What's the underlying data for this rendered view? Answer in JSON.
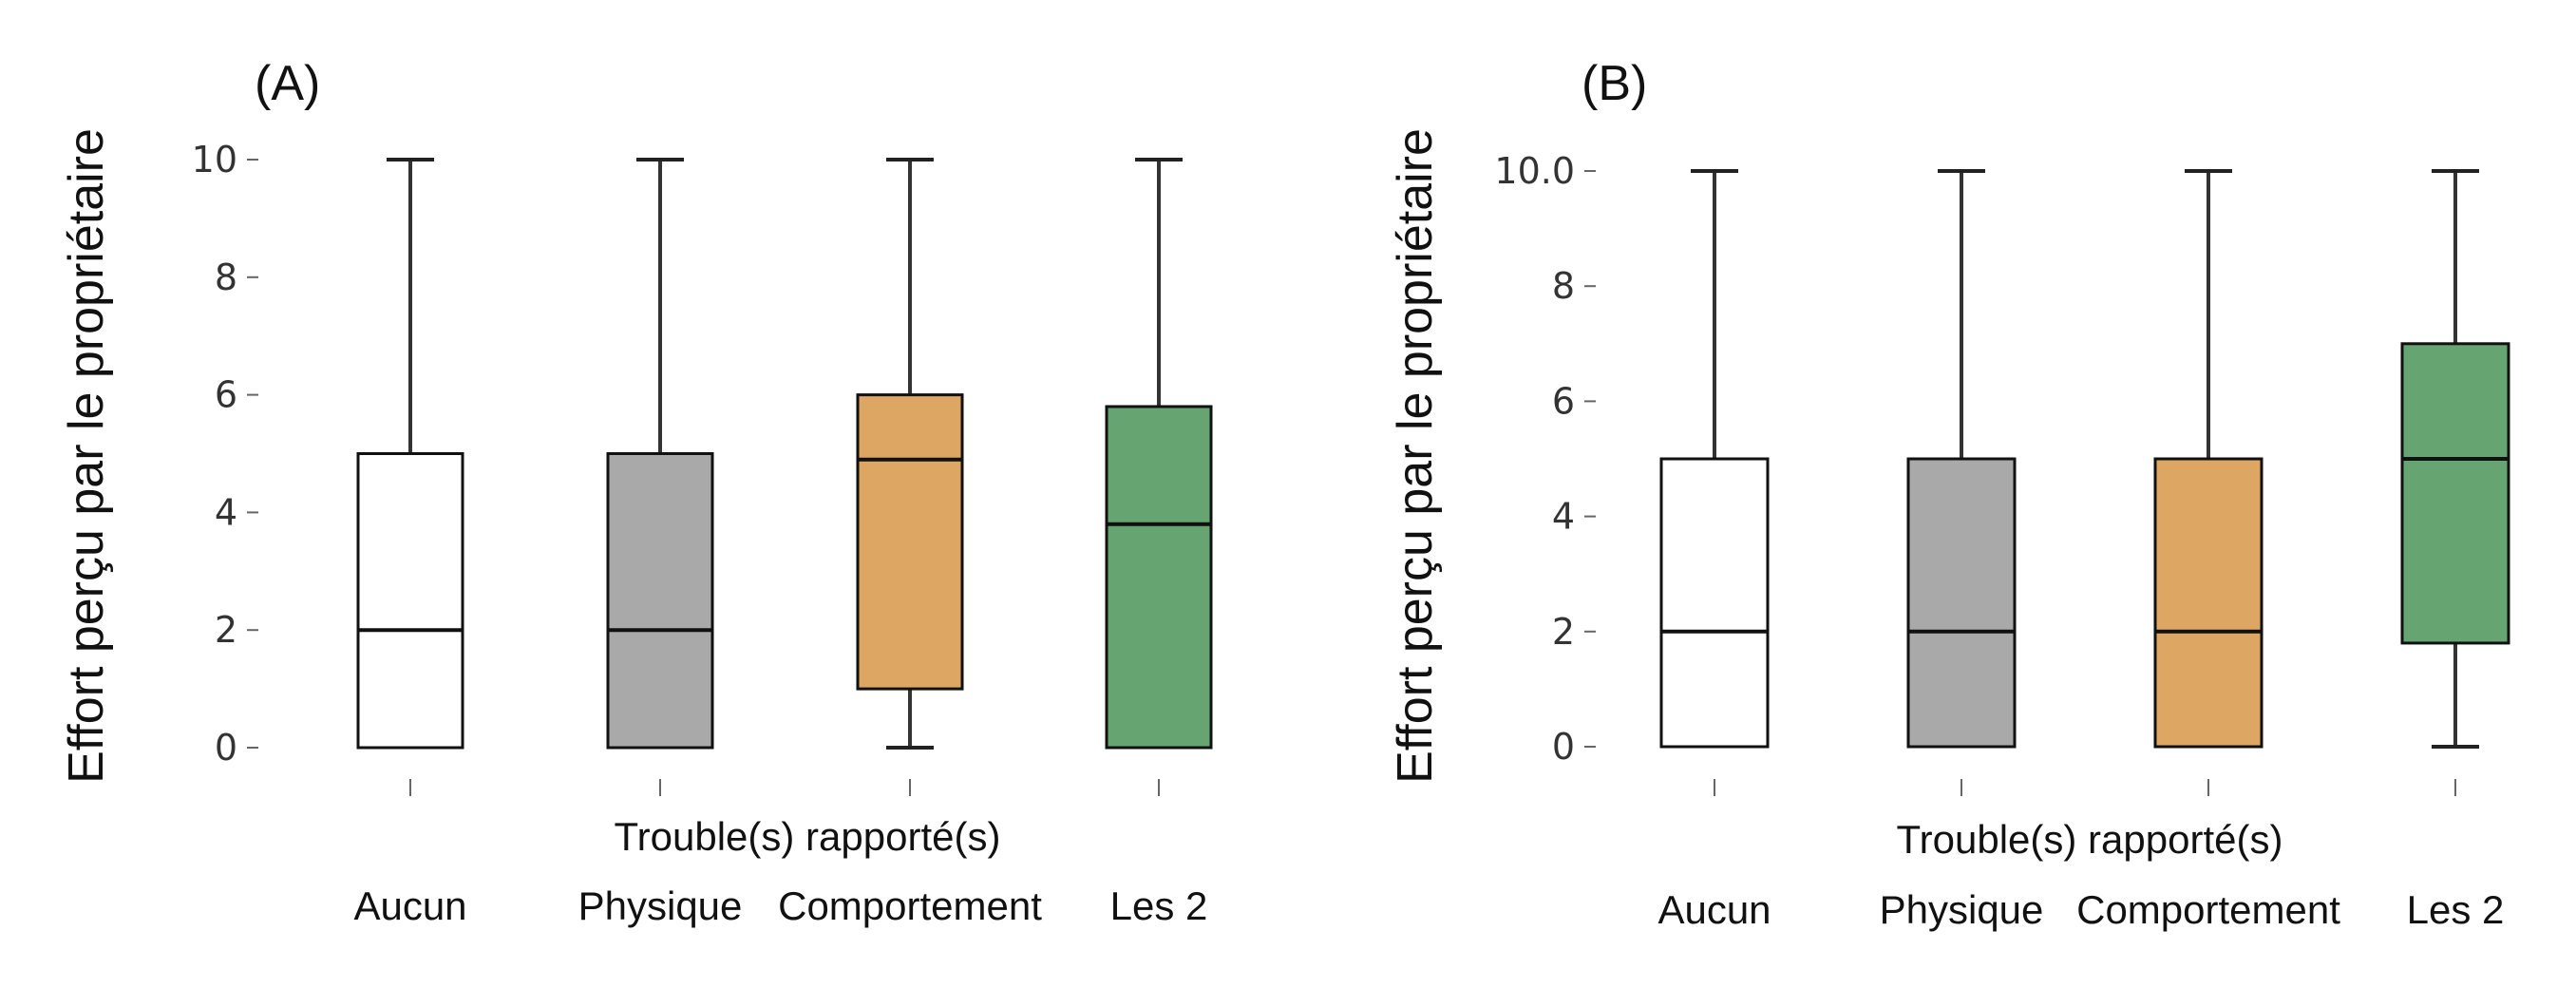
{
  "chart_data": [
    {
      "type": "box",
      "panel_label": "(A)",
      "ylabel": "Effort perçu par le propriétaire",
      "xlabel": "Trouble(s) rapporté(s)",
      "categories": [
        "Aucun",
        "Physique",
        "Comportement",
        "Les 2"
      ],
      "ylim": [
        0,
        10
      ],
      "yticks": [
        0,
        2,
        4,
        6,
        8,
        10
      ],
      "boxes": [
        {
          "min": 0,
          "q1": 0,
          "median": 2,
          "q3": 5,
          "max": 10,
          "color": "#ffffff"
        },
        {
          "min": 0,
          "q1": 0,
          "median": 2,
          "q3": 5,
          "max": 10,
          "color": "#a9a9a9"
        },
        {
          "min": 0,
          "q1": 1,
          "median": 4.9,
          "q3": 6,
          "max": 10,
          "color": "#dda662"
        },
        {
          "min": 0,
          "q1": 0,
          "median": 3.8,
          "q3": 5.8,
          "max": 10,
          "color": "#66a472"
        }
      ],
      "grid": false
    },
    {
      "type": "box",
      "panel_label": "(B)",
      "ylabel": "Effort perçu par le propriétaire",
      "xlabel": "Trouble(s) rapporté(s)",
      "categories": [
        "Aucun",
        "Physique",
        "Comportement",
        "Les 2"
      ],
      "ylim": [
        0,
        10
      ],
      "yticks": [
        "0",
        "2",
        "4",
        "6",
        "8",
        "10.0"
      ],
      "boxes": [
        {
          "min": 0,
          "q1": 0,
          "median": 2,
          "q3": 5,
          "max": 10,
          "color": "#ffffff"
        },
        {
          "min": 0,
          "q1": 0,
          "median": 2,
          "q3": 5,
          "max": 10,
          "color": "#a9a9a9"
        },
        {
          "min": 0,
          "q1": 0,
          "median": 2,
          "q3": 5,
          "max": 10,
          "color": "#dda662"
        },
        {
          "min": 0,
          "q1": 1.8,
          "median": 5,
          "q3": 7,
          "max": 10,
          "color": "#66a472"
        }
      ],
      "grid": false
    }
  ]
}
